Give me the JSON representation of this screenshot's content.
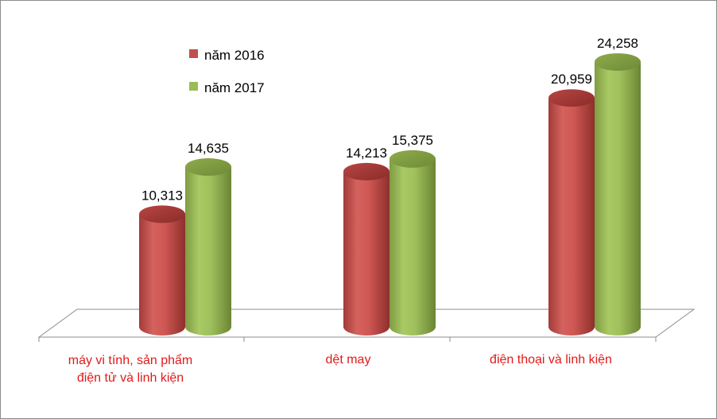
{
  "chart_data": {
    "type": "bar",
    "categories": [
      [
        "máy vi tính, sản phẩm",
        "điện tử và linh kiện"
      ],
      [
        "dệt may"
      ],
      [
        "điện thoại và linh kiện"
      ]
    ],
    "series": [
      {
        "name": "năm 2016",
        "values": [
          10.313,
          14.213,
          20.959
        ],
        "labels": [
          "10,313",
          "14,213",
          "20,959"
        ],
        "color": "#c0504d"
      },
      {
        "name": "năm 2017",
        "values": [
          14.635,
          15.375,
          24.258
        ],
        "labels": [
          "14,635",
          "15,375",
          "24,258"
        ],
        "color": "#9bbb59"
      }
    ],
    "ylim": [
      0,
      27
    ],
    "grid": false,
    "legend_position": "top-left",
    "style": "3d-cylinder"
  }
}
